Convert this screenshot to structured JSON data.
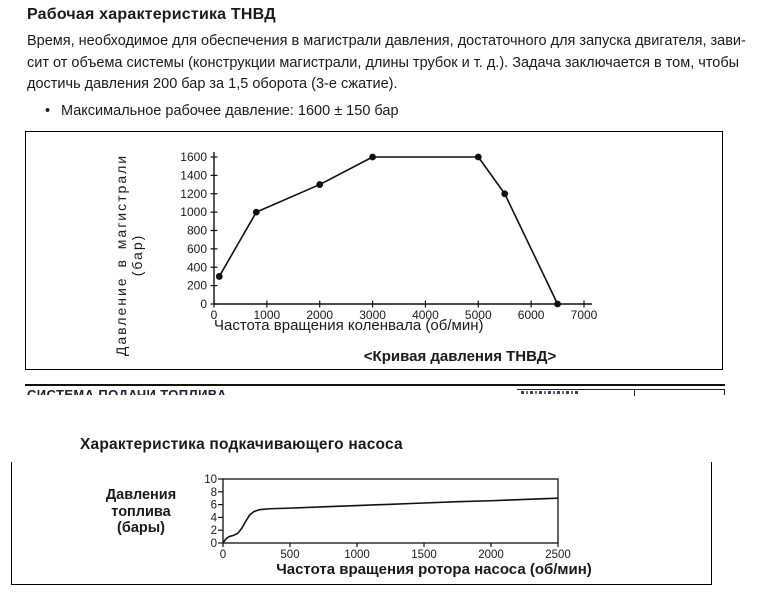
{
  "section1": {
    "title": "Рабочая характеристика ТНВД",
    "paragraph_lines": [
      "Время, необходимое для обеспечения в магистрали давления, достаточного для запуска двигателя, зави-",
      "сит от объема системы (конструкции магистрали, длины трубок и т. д.). Задача заключается в том, чтобы",
      "достичь давления 200 бар за 1,5 оборота (3-е сжатие)."
    ],
    "bullet_marker": "•",
    "bullet": "Максимальное рабочее давление: 1600 ± 150 бар"
  },
  "divider": {
    "clipped_header": "СИСТЕМА ПОДАЧИ ТОПЛИВА"
  },
  "section2": {
    "title": "Характеристика подкачивающего насоса"
  },
  "chart_data": [
    {
      "type": "line",
      "title": "<Кривая давления ТНВД>",
      "xlabel": "Частота вращения коленвала (об/мин)",
      "ylabel": "Давление в магистрали (бар)",
      "x": [
        100,
        800,
        2000,
        3000,
        5000,
        5500,
        6500
      ],
      "y": [
        300,
        1000,
        1300,
        1600,
        1600,
        1200,
        0
      ],
      "xlim": [
        0,
        7000
      ],
      "ylim": [
        0,
        1600
      ],
      "xticks": [
        0,
        1000,
        2000,
        3000,
        4000,
        5000,
        6000,
        7000
      ],
      "yticks": [
        0,
        200,
        400,
        600,
        800,
        1000,
        1200,
        1400,
        1600
      ],
      "markers": true,
      "grid": false,
      "legend": "none"
    },
    {
      "type": "line",
      "title": "",
      "xlabel": "Частота вращения ротора насоса (об/мин)",
      "ylabel": "Давления топлива (бары)",
      "x": [
        0,
        20,
        45,
        80,
        110,
        140,
        170,
        200,
        230,
        270,
        350,
        500,
        750,
        1000,
        1250,
        1500,
        1750,
        2000,
        2250,
        2500
      ],
      "y": [
        0,
        0.6,
        1.0,
        1.2,
        1.5,
        2.3,
        3.4,
        4.4,
        4.9,
        5.2,
        5.35,
        5.45,
        5.65,
        5.85,
        6.05,
        6.25,
        6.45,
        6.6,
        6.8,
        7.0
      ],
      "xlim": [
        0,
        2500
      ],
      "ylim": [
        0,
        10
      ],
      "xticks": [
        0,
        500,
        1000,
        1500,
        2000,
        2500
      ],
      "yticks": [
        0,
        2,
        4,
        6,
        8,
        10
      ],
      "markers": false,
      "grid": false,
      "legend": "none"
    }
  ]
}
